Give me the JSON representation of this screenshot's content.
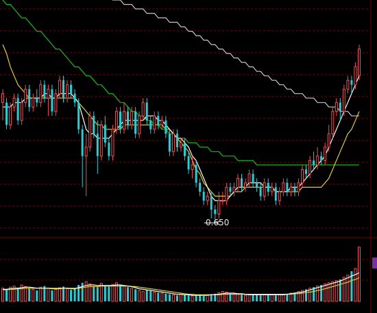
{
  "chart_data": {
    "type": "candlestick",
    "annotations": [
      {
        "text": "0.650",
        "at_candle": 56,
        "value": 0.65
      }
    ],
    "colors": {
      "background": "#000000",
      "grid": "#7a0000",
      "up": "#ff4a4a",
      "down": "#19d4dd",
      "ma_short": "#ffffff",
      "ma_mid": "#e6d200",
      "ma_long": "#00c800",
      "ma_longest": "#c8c8c8"
    },
    "price": {
      "ylim": [
        0.62,
        1.15
      ],
      "grid": true,
      "candles": [
        [
          0.92,
          0.94,
          0.95,
          0.88
        ],
        [
          0.92,
          0.87,
          0.93,
          0.86
        ],
        [
          0.87,
          0.91,
          0.92,
          0.86
        ],
        [
          0.91,
          0.93,
          0.94,
          0.9
        ],
        [
          0.93,
          0.88,
          0.94,
          0.87
        ],
        [
          0.88,
          0.92,
          0.93,
          0.87
        ],
        [
          0.92,
          0.95,
          0.96,
          0.91
        ],
        [
          0.95,
          0.91,
          0.96,
          0.9
        ],
        [
          0.91,
          0.93,
          0.94,
          0.9
        ],
        [
          0.93,
          0.92,
          0.95,
          0.91
        ],
        [
          0.92,
          0.96,
          0.97,
          0.91
        ],
        [
          0.96,
          0.93,
          0.97,
          0.92
        ],
        [
          0.93,
          0.95,
          0.96,
          0.89
        ],
        [
          0.95,
          0.9,
          0.96,
          0.89
        ],
        [
          0.9,
          0.94,
          0.95,
          0.89
        ],
        [
          0.94,
          0.97,
          0.98,
          0.93
        ],
        [
          0.97,
          0.93,
          0.98,
          0.92
        ],
        [
          0.93,
          0.96,
          0.97,
          0.92
        ],
        [
          0.96,
          0.94,
          0.97,
          0.93
        ],
        [
          0.94,
          0.92,
          0.95,
          0.91
        ],
        [
          0.92,
          0.86,
          0.93,
          0.85
        ],
        [
          0.86,
          0.8,
          0.87,
          0.73
        ],
        [
          0.8,
          0.82,
          0.85,
          0.71
        ],
        [
          0.82,
          0.89,
          0.9,
          0.81
        ],
        [
          0.89,
          0.85,
          0.9,
          0.84
        ],
        [
          0.85,
          0.8,
          0.88,
          0.76
        ],
        [
          0.8,
          0.87,
          0.88,
          0.79
        ],
        [
          0.87,
          0.83,
          0.89,
          0.82
        ],
        [
          0.83,
          0.8,
          0.84,
          0.79
        ],
        [
          0.8,
          0.86,
          0.87,
          0.79
        ],
        [
          0.86,
          0.9,
          0.91,
          0.85
        ],
        [
          0.9,
          0.86,
          0.91,
          0.85
        ],
        [
          0.86,
          0.9,
          0.92,
          0.85
        ],
        [
          0.9,
          0.87,
          0.91,
          0.86
        ],
        [
          0.87,
          0.9,
          0.91,
          0.86
        ],
        [
          0.9,
          0.85,
          0.91,
          0.84
        ],
        [
          0.85,
          0.89,
          0.9,
          0.84
        ],
        [
          0.89,
          0.92,
          0.93,
          0.88
        ],
        [
          0.92,
          0.88,
          0.93,
          0.87
        ],
        [
          0.88,
          0.86,
          0.89,
          0.85
        ],
        [
          0.86,
          0.89,
          0.9,
          0.85
        ],
        [
          0.89,
          0.87,
          0.9,
          0.86
        ],
        [
          0.87,
          0.88,
          0.89,
          0.86
        ],
        [
          0.88,
          0.85,
          0.89,
          0.84
        ],
        [
          0.85,
          0.81,
          0.86,
          0.8
        ],
        [
          0.81,
          0.85,
          0.86,
          0.8
        ],
        [
          0.85,
          0.82,
          0.86,
          0.81
        ],
        [
          0.82,
          0.83,
          0.84,
          0.81
        ],
        [
          0.83,
          0.8,
          0.84,
          0.79
        ],
        [
          0.8,
          0.77,
          0.81,
          0.76
        ],
        [
          0.77,
          0.78,
          0.8,
          0.75
        ],
        [
          0.78,
          0.74,
          0.79,
          0.73
        ],
        [
          0.74,
          0.72,
          0.75,
          0.71
        ],
        [
          0.72,
          0.7,
          0.73,
          0.69
        ],
        [
          0.7,
          0.71,
          0.72,
          0.69
        ],
        [
          0.71,
          0.68,
          0.72,
          0.66
        ],
        [
          0.68,
          0.67,
          0.69,
          0.65
        ],
        [
          0.67,
          0.7,
          0.72,
          0.66
        ],
        [
          0.7,
          0.7,
          0.72,
          0.69
        ],
        [
          0.7,
          0.73,
          0.74,
          0.69
        ],
        [
          0.73,
          0.72,
          0.74,
          0.71
        ],
        [
          0.72,
          0.73,
          0.74,
          0.71
        ],
        [
          0.73,
          0.75,
          0.76,
          0.72
        ],
        [
          0.75,
          0.73,
          0.76,
          0.72
        ],
        [
          0.73,
          0.74,
          0.75,
          0.72
        ],
        [
          0.74,
          0.76,
          0.77,
          0.73
        ],
        [
          0.76,
          0.74,
          0.77,
          0.73
        ],
        [
          0.74,
          0.73,
          0.75,
          0.72
        ],
        [
          0.73,
          0.71,
          0.74,
          0.7
        ],
        [
          0.71,
          0.74,
          0.75,
          0.7
        ],
        [
          0.74,
          0.72,
          0.75,
          0.71
        ],
        [
          0.72,
          0.73,
          0.74,
          0.71
        ],
        [
          0.73,
          0.7,
          0.74,
          0.69
        ],
        [
          0.7,
          0.72,
          0.73,
          0.69
        ],
        [
          0.72,
          0.74,
          0.75,
          0.71
        ],
        [
          0.74,
          0.72,
          0.75,
          0.71
        ],
        [
          0.72,
          0.73,
          0.74,
          0.71
        ],
        [
          0.73,
          0.72,
          0.74,
          0.71
        ],
        [
          0.72,
          0.74,
          0.75,
          0.71
        ],
        [
          0.74,
          0.77,
          0.78,
          0.73
        ],
        [
          0.77,
          0.76,
          0.78,
          0.75
        ],
        [
          0.76,
          0.79,
          0.8,
          0.75
        ],
        [
          0.79,
          0.78,
          0.81,
          0.77
        ],
        [
          0.78,
          0.8,
          0.82,
          0.77
        ],
        [
          0.8,
          0.79,
          0.81,
          0.78
        ],
        [
          0.79,
          0.82,
          0.83,
          0.78
        ],
        [
          0.82,
          0.85,
          0.87,
          0.81
        ],
        [
          0.85,
          0.9,
          0.91,
          0.84
        ],
        [
          0.9,
          0.92,
          0.93,
          0.89
        ],
        [
          0.92,
          0.9,
          0.93,
          0.88
        ],
        [
          0.9,
          0.95,
          0.96,
          0.89
        ],
        [
          0.95,
          0.97,
          0.98,
          0.94
        ],
        [
          0.97,
          0.96,
          0.98,
          0.94
        ],
        [
          0.96,
          1.0,
          1.01,
          0.95
        ],
        [
          0.98,
          1.04,
          1.05,
          0.97
        ]
      ],
      "ma_short": [
        0.91,
        0.91,
        0.91,
        0.92,
        0.92,
        0.92,
        0.93,
        0.93,
        0.93,
        0.93,
        0.93,
        0.94,
        0.94,
        0.93,
        0.93,
        0.94,
        0.94,
        0.94,
        0.94,
        0.93,
        0.92,
        0.89,
        0.86,
        0.85,
        0.85,
        0.84,
        0.84,
        0.84,
        0.84,
        0.85,
        0.86,
        0.87,
        0.88,
        0.88,
        0.88,
        0.88,
        0.88,
        0.88,
        0.89,
        0.89,
        0.89,
        0.88,
        0.88,
        0.87,
        0.86,
        0.85,
        0.84,
        0.84,
        0.83,
        0.82,
        0.8,
        0.79,
        0.77,
        0.75,
        0.73,
        0.71,
        0.7,
        0.7,
        0.7,
        0.7,
        0.71,
        0.72,
        0.73,
        0.73,
        0.73,
        0.74,
        0.74,
        0.74,
        0.74,
        0.73,
        0.73,
        0.73,
        0.72,
        0.72,
        0.72,
        0.72,
        0.73,
        0.73,
        0.73,
        0.74,
        0.75,
        0.76,
        0.77,
        0.78,
        0.79,
        0.8,
        0.82,
        0.84,
        0.86,
        0.88,
        0.9,
        0.92,
        0.94,
        0.96,
        0.98
      ],
      "ma_mid": [
        1.05,
        1.03,
        1.0,
        0.98,
        0.96,
        0.95,
        0.94,
        0.93,
        0.93,
        0.93,
        0.93,
        0.93,
        0.93,
        0.93,
        0.93,
        0.93,
        0.93,
        0.93,
        0.93,
        0.93,
        0.92,
        0.91,
        0.9,
        0.89,
        0.88,
        0.87,
        0.87,
        0.86,
        0.86,
        0.86,
        0.86,
        0.86,
        0.87,
        0.87,
        0.87,
        0.87,
        0.87,
        0.87,
        0.87,
        0.87,
        0.87,
        0.87,
        0.87,
        0.86,
        0.86,
        0.85,
        0.84,
        0.83,
        0.82,
        0.81,
        0.79,
        0.77,
        0.76,
        0.74,
        0.73,
        0.72,
        0.71,
        0.71,
        0.71,
        0.71,
        0.71,
        0.72,
        0.72,
        0.72,
        0.73,
        0.73,
        0.73,
        0.73,
        0.73,
        0.73,
        0.73,
        0.73,
        0.72,
        0.72,
        0.72,
        0.72,
        0.72,
        0.72,
        0.72,
        0.73,
        0.73,
        0.73,
        0.73,
        0.73,
        0.73,
        0.74,
        0.75,
        0.77,
        0.79,
        0.81,
        0.83,
        0.85,
        0.86,
        0.88,
        0.9
      ],
      "ma_long": [
        1.15,
        1.14,
        1.14,
        1.13,
        1.12,
        1.11,
        1.11,
        1.1,
        1.09,
        1.08,
        1.08,
        1.07,
        1.06,
        1.05,
        1.04,
        1.04,
        1.03,
        1.02,
        1.01,
        1.0,
        1.0,
        0.99,
        0.98,
        0.98,
        0.97,
        0.96,
        0.96,
        0.95,
        0.94,
        0.94,
        0.93,
        0.92,
        0.92,
        0.91,
        0.9,
        0.9,
        0.89,
        0.89,
        0.88,
        0.88,
        0.87,
        0.87,
        0.86,
        0.86,
        0.85,
        0.85,
        0.84,
        0.84,
        0.84,
        0.83,
        0.83,
        0.83,
        0.82,
        0.82,
        0.82,
        0.81,
        0.81,
        0.81,
        0.8,
        0.8,
        0.8,
        0.8,
        0.79,
        0.79,
        0.79,
        0.79,
        0.79,
        0.78,
        0.78,
        0.78,
        0.78,
        0.78,
        0.78,
        0.78,
        0.78,
        0.78,
        0.78,
        0.78,
        0.78,
        0.78,
        0.78,
        0.78,
        0.78,
        0.78,
        0.78,
        0.78,
        0.78,
        0.78,
        0.78,
        0.78,
        0.78,
        0.78,
        0.78,
        0.78,
        0.78
      ],
      "ma_longest": [
        1.25,
        1.25,
        1.24,
        1.24,
        1.24,
        1.23,
        1.23,
        1.23,
        1.22,
        1.22,
        1.22,
        1.21,
        1.21,
        1.21,
        1.2,
        1.2,
        1.2,
        1.19,
        1.19,
        1.19,
        1.18,
        1.18,
        1.18,
        1.17,
        1.17,
        1.17,
        1.16,
        1.16,
        1.16,
        1.15,
        1.15,
        1.15,
        1.14,
        1.14,
        1.14,
        1.13,
        1.13,
        1.13,
        1.12,
        1.12,
        1.12,
        1.11,
        1.11,
        1.11,
        1.1,
        1.1,
        1.1,
        1.09,
        1.09,
        1.08,
        1.08,
        1.07,
        1.07,
        1.06,
        1.06,
        1.05,
        1.05,
        1.04,
        1.04,
        1.03,
        1.03,
        1.02,
        1.02,
        1.01,
        1.01,
        1.0,
        1.0,
        0.99,
        0.99,
        0.98,
        0.98,
        0.97,
        0.97,
        0.96,
        0.96,
        0.95,
        0.95,
        0.94,
        0.94,
        0.94,
        0.93,
        0.93,
        0.93,
        0.92,
        0.92,
        0.92,
        0.91,
        0.91,
        0.91,
        0.9,
        0.9,
        0.9,
        0.89,
        0.89,
        0.89
      ]
    },
    "volume": {
      "ylim": [
        0,
        100
      ],
      "bars": [
        24,
        22,
        26,
        28,
        25,
        30,
        27,
        24,
        22,
        20,
        26,
        28,
        24,
        20,
        22,
        25,
        27,
        23,
        21,
        24,
        30,
        34,
        36,
        32,
        28,
        26,
        33,
        29,
        27,
        31,
        34,
        30,
        28,
        26,
        24,
        22,
        20,
        18,
        21,
        19,
        17,
        16,
        15,
        14,
        13,
        12,
        11,
        13,
        12,
        11,
        10,
        12,
        11,
        10,
        12,
        13,
        14,
        16,
        18,
        17,
        15,
        14,
        13,
        12,
        11,
        12,
        13,
        12,
        11,
        12,
        13,
        12,
        11,
        12,
        13,
        14,
        15,
        16,
        18,
        20,
        22,
        24,
        26,
        28,
        30,
        32,
        34,
        36,
        38,
        40,
        44,
        48,
        55,
        60,
        99
      ],
      "ma_short": [
        22,
        22,
        23,
        24,
        24,
        25,
        26,
        26,
        25,
        24,
        24,
        24,
        24,
        23,
        23,
        23,
        24,
        24,
        23,
        23,
        25,
        27,
        29,
        30,
        30,
        29,
        29,
        29,
        29,
        29,
        30,
        30,
        29,
        28,
        27,
        25,
        23,
        22,
        21,
        20,
        19,
        18,
        17,
        16,
        15,
        14,
        13,
        13,
        12,
        12,
        11,
        11,
        11,
        11,
        11,
        12,
        12,
        13,
        14,
        15,
        15,
        15,
        14,
        14,
        13,
        12,
        12,
        12,
        12,
        12,
        12,
        12,
        12,
        12,
        12,
        13,
        14,
        15,
        16,
        17,
        19,
        21,
        23,
        25,
        27,
        29,
        31,
        33,
        35,
        37,
        40,
        43,
        46,
        49,
        52
      ],
      "ma_mid": [
        21,
        21,
        22,
        22,
        23,
        23,
        24,
        24,
        24,
        24,
        24,
        24,
        24,
        24,
        24,
        24,
        24,
        24,
        24,
        24,
        24,
        25,
        26,
        27,
        27,
        27,
        28,
        28,
        28,
        28,
        28,
        28,
        28,
        28,
        27,
        27,
        26,
        25,
        24,
        23,
        22,
        21,
        20,
        19,
        18,
        17,
        16,
        15,
        14,
        13,
        13,
        12,
        12,
        12,
        12,
        12,
        12,
        12,
        13,
        13,
        13,
        13,
        13,
        13,
        13,
        13,
        13,
        13,
        13,
        13,
        13,
        13,
        13,
        13,
        13,
        13,
        13,
        14,
        14,
        15,
        16,
        17,
        18,
        20,
        21,
        23,
        25,
        27,
        29,
        31,
        33,
        35,
        38,
        40,
        43
      ]
    }
  }
}
